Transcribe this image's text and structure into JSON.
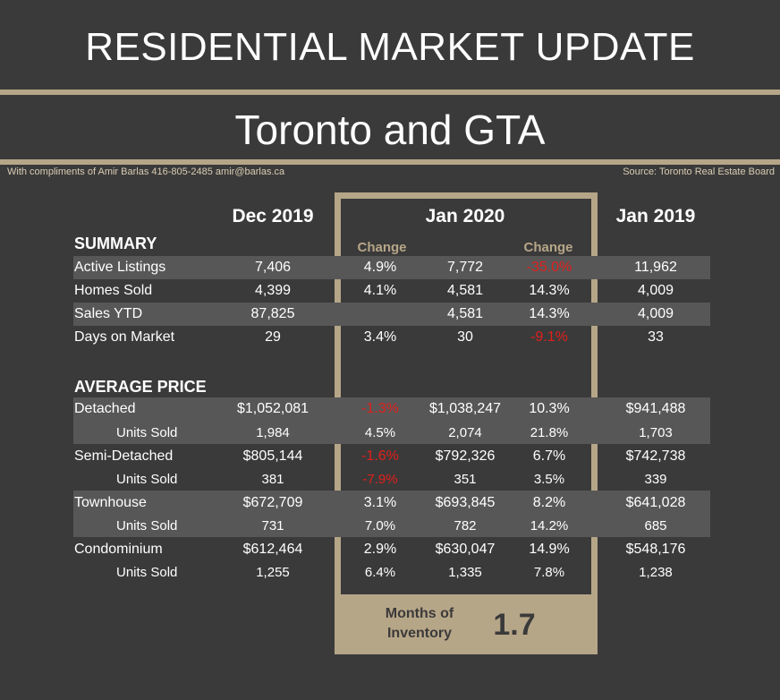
{
  "title": "RESIDENTIAL MARKET UPDATE",
  "subtitle": "Toronto and GTA",
  "credit": "With compliments of Amir Barlas 416-805-2485 amir@barlas.ca",
  "source": "Source: Toronto Real Estate Board",
  "columns": {
    "dec2019": "Dec 2019",
    "jan2020": "Jan 2020",
    "jan2019": "Jan 2019",
    "change": "Change"
  },
  "summary": {
    "heading": "SUMMARY",
    "rows": [
      {
        "label": "Active Listings",
        "dec": "7,406",
        "chg1": "4.9%",
        "jan20": "7,772",
        "chg2": "-35.0%",
        "jan19": "11,962"
      },
      {
        "label": "Homes Sold",
        "dec": "4,399",
        "chg1": "4.1%",
        "jan20": "4,581",
        "chg2": "14.3%",
        "jan19": "4,009"
      },
      {
        "label": "Sales YTD",
        "dec": "87,825",
        "chg1": "",
        "jan20": "4,581",
        "chg2": "14.3%",
        "jan19": "4,009"
      },
      {
        "label": "Days on Market",
        "dec": "29",
        "chg1": "3.4%",
        "jan20": "30",
        "chg2": "-9.1%",
        "jan19": "33"
      }
    ]
  },
  "average_price": {
    "heading": "AVERAGE PRICE",
    "rows": [
      {
        "label": "Detached",
        "dec": "$1,052,081",
        "chg1": "-1.3%",
        "jan20": "$1,038,247",
        "chg2": "10.3%",
        "jan19": "$941,488"
      },
      {
        "label": "Units Sold",
        "dec": "1,984",
        "chg1": "4.5%",
        "jan20": "2,074",
        "chg2": "21.8%",
        "jan19": "1,703"
      },
      {
        "label": "Semi-Detached",
        "dec": "$805,144",
        "chg1": "-1.6%",
        "jan20": "$792,326",
        "chg2": "6.7%",
        "jan19": "$742,738"
      },
      {
        "label": "Units Sold",
        "dec": "381",
        "chg1": "-7.9%",
        "jan20": "351",
        "chg2": "3.5%",
        "jan19": "339"
      },
      {
        "label": "Townhouse",
        "dec": "$672,709",
        "chg1": "3.1%",
        "jan20": "$693,845",
        "chg2": "8.2%",
        "jan19": "$641,028"
      },
      {
        "label": "Units Sold",
        "dec": "731",
        "chg1": "7.0%",
        "jan20": "782",
        "chg2": "14.2%",
        "jan19": "685"
      },
      {
        "label": "Condominium",
        "dec": "$612,464",
        "chg1": "2.9%",
        "jan20": "$630,047",
        "chg2": "14.9%",
        "jan19": "$548,176"
      },
      {
        "label": "Units Sold",
        "dec": "1,255",
        "chg1": "6.4%",
        "jan20": "1,335",
        "chg2": "7.8%",
        "jan19": "1,238"
      }
    ]
  },
  "months_of_inventory": {
    "label_line1": "Months of",
    "label_line2": "Inventory",
    "value": "1.7"
  },
  "colors": {
    "background": "#3b3a3a",
    "accent": "#b6a688",
    "band": "#575757",
    "negative": "#e0201c"
  }
}
